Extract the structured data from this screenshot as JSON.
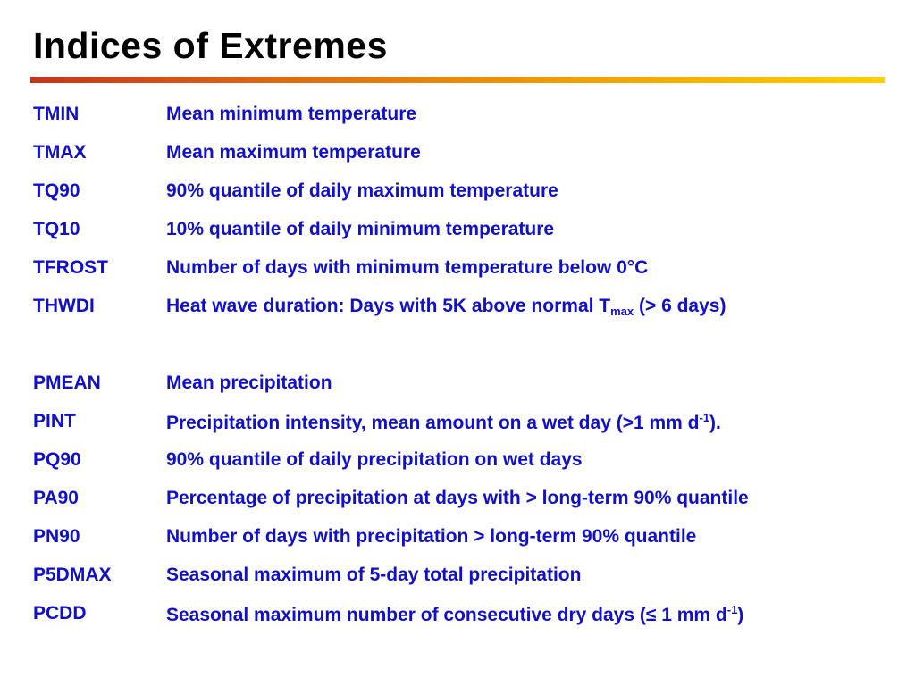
{
  "slide": {
    "title": "Indices of Extremes"
  },
  "temperature_indices": [
    {
      "code": "TMIN",
      "desc": "Mean minimum temperature"
    },
    {
      "code": "TMAX",
      "desc": "Mean maximum temperature"
    },
    {
      "code": "TQ90",
      "desc": "90% quantile of daily maximum temperature"
    },
    {
      "code": "TQ10",
      "desc": "10% quantile of daily minimum temperature"
    },
    {
      "code": "TFROST",
      "desc": "Number of days with minimum temperature below 0°C"
    },
    {
      "code": "THWDI",
      "desc_pre": "Heat wave duration: Days with 5K above normal T",
      "desc_sub": "max",
      "desc_post": " (> 6 days)"
    }
  ],
  "precipitation_indices": [
    {
      "code": "PMEAN",
      "desc": "Mean precipitation"
    },
    {
      "code": "PINT",
      "desc_pre": "Precipitation intensity, mean amount on a wet day (>1 mm d",
      "desc_sup": "-1",
      "desc_post": ")."
    },
    {
      "code": "PQ90",
      "desc": "90% quantile of daily precipitation on wet days"
    },
    {
      "code": "PA90",
      "desc": "Percentage of precipitation at days with > long-term 90% quantile"
    },
    {
      "code": "PN90",
      "desc": "Number of days with precipitation > long-term 90% quantile"
    },
    {
      "code": "P5DMAX",
      "desc": "Seasonal maximum of 5-day total precipitation"
    },
    {
      "code": "PCDD",
      "desc_pre": "Seasonal maximum number of consecutive dry days (≤ 1 mm d",
      "desc_sup": "-1",
      "desc_post": ")"
    }
  ]
}
